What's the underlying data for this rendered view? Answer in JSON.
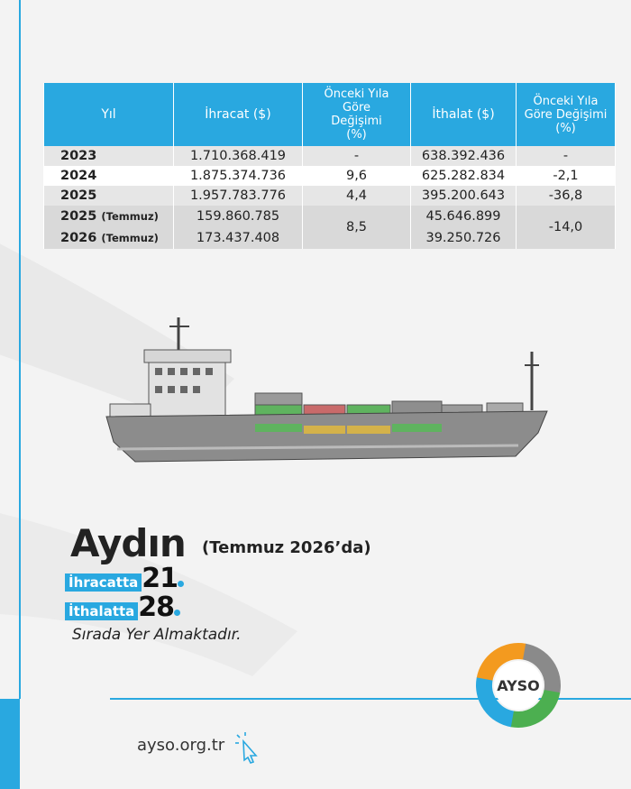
{
  "table": {
    "header": [
      "Yıl",
      "İhracat ($)",
      "Önceki Yıla Göre Değişimi (%)",
      "İthalat ($)",
      "Önceki Yıla Göre Değişimi (%)"
    ],
    "rows": [
      [
        "2023",
        "1.710.368.419",
        "-",
        "638.392.436",
        "-"
      ],
      [
        "2024",
        "1.875.374.736",
        "9,6",
        "625.282.834",
        "-2,1"
      ],
      [
        "2025",
        "1.957.783.776",
        "4,4",
        "395.200.643",
        "-36,8"
      ]
    ],
    "monthly": {
      "years": [
        [
          "2025",
          "(Temmuz)"
        ],
        [
          "2026",
          "(Temmuz)"
        ]
      ],
      "exports": [
        "159.860.785",
        "173.437.408"
      ],
      "export_change": "8,5",
      "imports": [
        "45.646.899",
        "39.250.726"
      ],
      "import_change": "-14,0"
    }
  },
  "headline": {
    "city": "Aydın",
    "period": "(Temmuz 2026’da)",
    "ranks": [
      {
        "label": "İhracatta",
        "rank": "21"
      },
      {
        "label": "İthalatta",
        "rank": "28"
      }
    ],
    "note": "Sırada Yer Almaktadır."
  },
  "logo": {
    "text": "AYSO"
  },
  "footer": {
    "url": "ayso.org.tr"
  }
}
